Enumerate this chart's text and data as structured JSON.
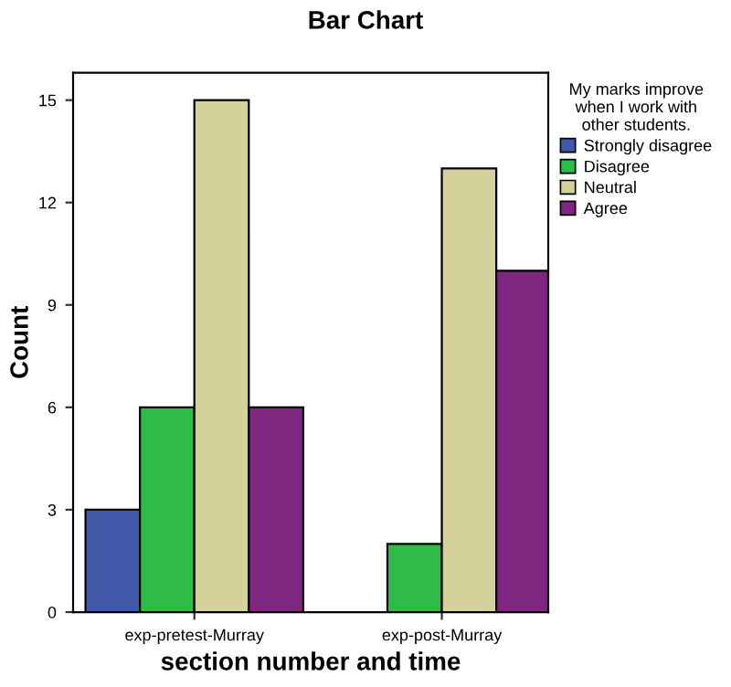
{
  "chart_data": {
    "type": "bar",
    "title": "Bar Chart",
    "xlabel": "section number and time",
    "ylabel": "Count",
    "legend_title": "My marks improve\nwhen I work with\nother students.",
    "categories": [
      "exp-pretest-Murray",
      "exp-post-Murray"
    ],
    "series": [
      {
        "name": "Strongly disagree",
        "color": "#3f58a8",
        "values": [
          3,
          null
        ]
      },
      {
        "name": "Disagree",
        "color": "#2fbb4a",
        "values": [
          6,
          2
        ]
      },
      {
        "name": "Neutral",
        "color": "#d4d29a",
        "values": [
          15,
          13
        ]
      },
      {
        "name": "Agree",
        "color": "#7d2780",
        "values": [
          6,
          10
        ]
      }
    ],
    "ylim": [
      0,
      15.8
    ],
    "yticks": [
      0,
      3,
      6,
      9,
      12,
      15
    ],
    "grid": false,
    "legend": "top right"
  }
}
